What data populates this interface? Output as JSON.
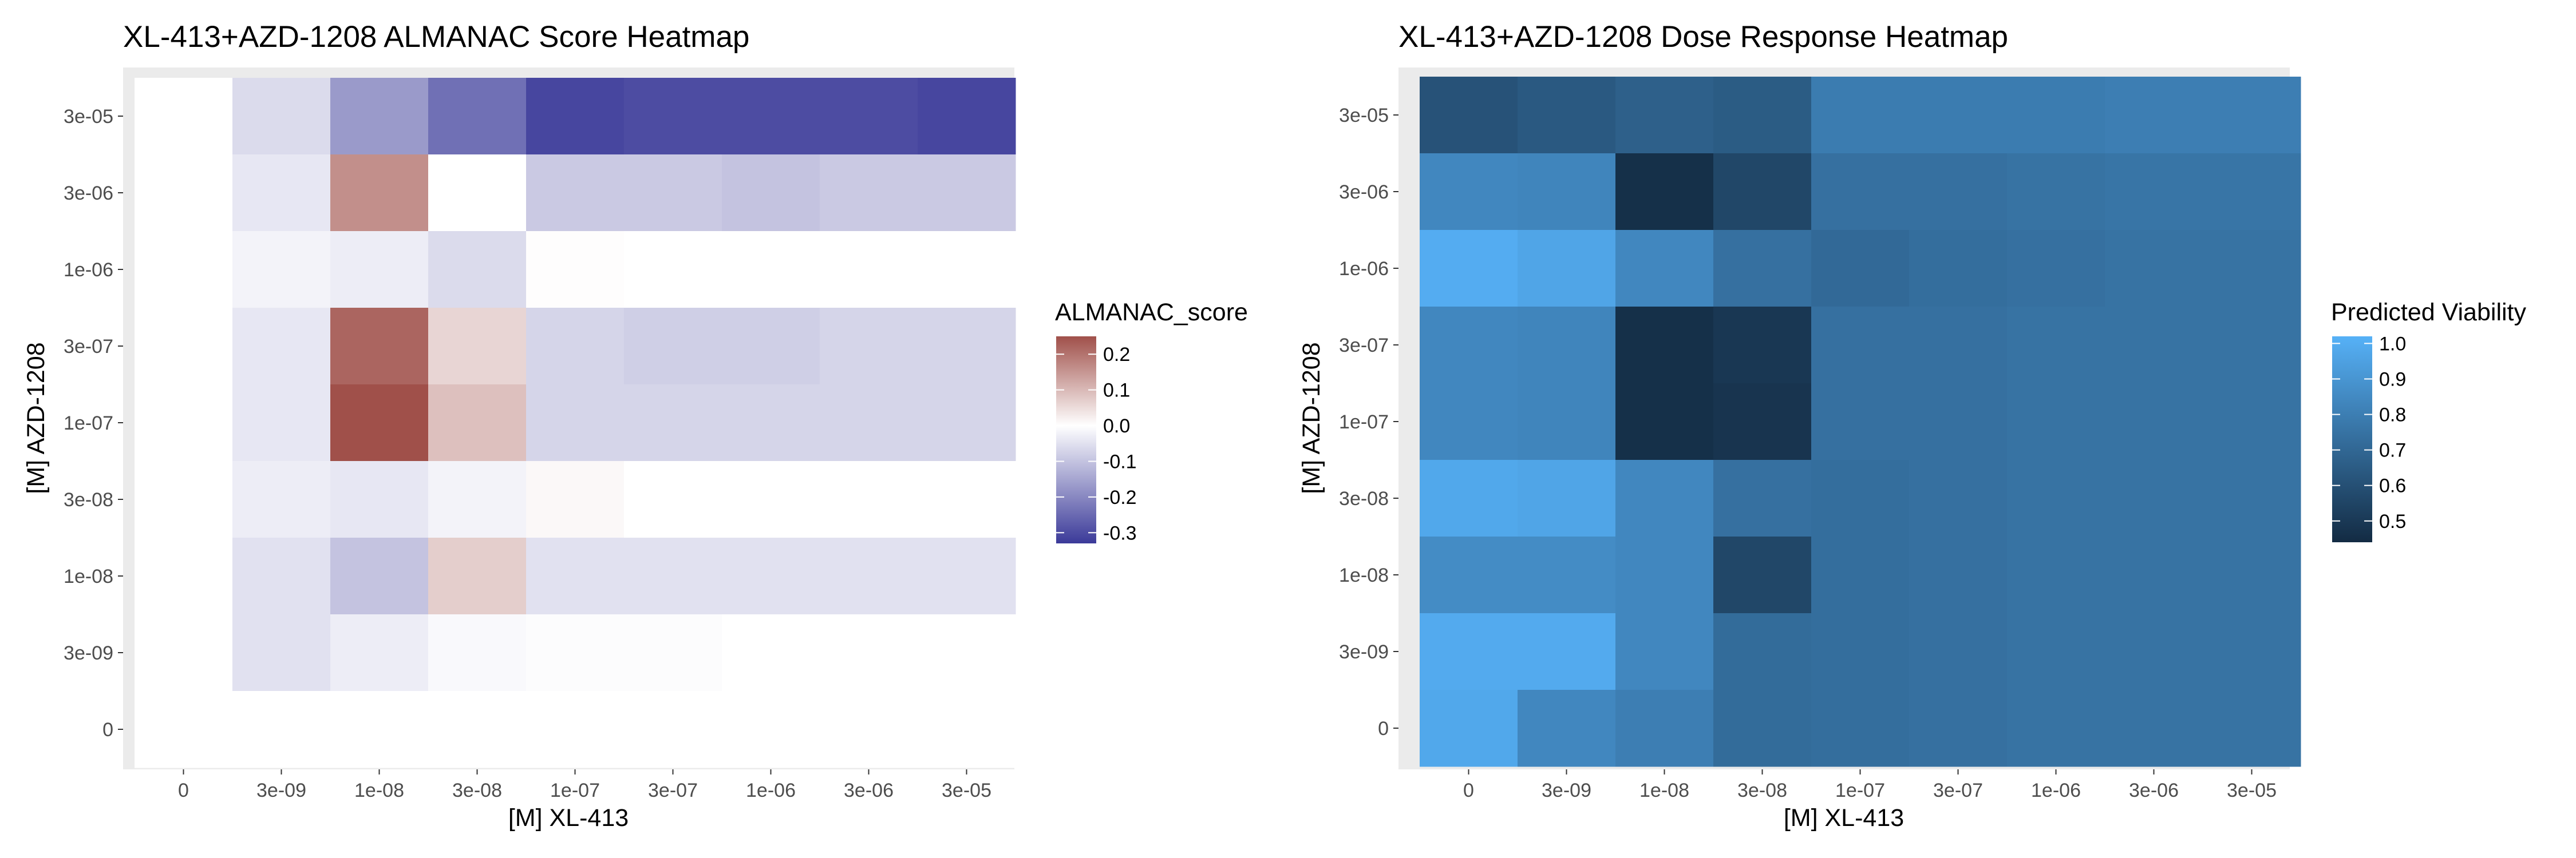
{
  "chart_data": [
    {
      "type": "heatmap",
      "title": "XL-413+AZD-1208 ALMANAC Score Heatmap",
      "xlabel": "[M] XL-413",
      "ylabel": "[M] AZD-1208",
      "x": [
        "0",
        "3e-09",
        "1e-08",
        "3e-08",
        "1e-07",
        "3e-07",
        "1e-06",
        "3e-06",
        "3e-05"
      ],
      "y": [
        "0",
        "3e-09",
        "1e-08",
        "3e-08",
        "1e-07",
        "3e-07",
        "1e-06",
        "3e-06",
        "3e-05"
      ],
      "values_by_row_top_to_bottom": [
        [
          0,
          -0.06,
          -0.17,
          -0.24,
          -0.31,
          -0.3,
          -0.3,
          -0.3,
          -0.31
        ],
        [
          0,
          -0.04,
          0.16,
          0,
          -0.09,
          -0.09,
          -0.1,
          -0.09,
          -0.09
        ],
        [
          0,
          -0.02,
          -0.03,
          -0.06,
          0.003,
          0,
          0,
          0,
          0
        ],
        [
          0,
          -0.04,
          0.22,
          0.06,
          -0.07,
          -0.08,
          -0.08,
          -0.07,
          -0.07
        ],
        [
          0,
          -0.04,
          0.25,
          0.09,
          -0.07,
          -0.07,
          -0.07,
          -0.07,
          -0.07
        ],
        [
          0,
          -0.03,
          -0.04,
          -0.02,
          0.01,
          0,
          0,
          0,
          0
        ],
        [
          0,
          -0.05,
          -0.1,
          0.07,
          -0.05,
          -0.05,
          -0.05,
          -0.05,
          -0.05
        ],
        [
          0,
          -0.05,
          -0.03,
          -0.01,
          -0.005,
          -0.005,
          0,
          0,
          0
        ],
        [
          0,
          0,
          0,
          0,
          0,
          0,
          0,
          0,
          0
        ]
      ],
      "value_range": [
        -0.33,
        0.25
      ],
      "legend": {
        "title": "ALMANAC_score",
        "ticks": [
          0.2,
          0.1,
          0.0,
          -0.1,
          -0.2,
          -0.3
        ],
        "tick_labels": [
          "0.2",
          "0.1",
          "0.0",
          "-0.1",
          "-0.2",
          "-0.3"
        ],
        "placement": "right"
      },
      "colors": {
        "low": "#3b3a99",
        "mid": "#ffffff",
        "high": "#a0504a"
      },
      "grid": false
    },
    {
      "type": "heatmap",
      "title": "XL-413+AZD-1208 Dose Response Heatmap",
      "xlabel": "[M] XL-413",
      "ylabel": "[M] AZD-1208",
      "x": [
        "0",
        "3e-09",
        "1e-08",
        "3e-08",
        "1e-07",
        "3e-07",
        "1e-06",
        "3e-06",
        "3e-05"
      ],
      "y": [
        "0",
        "3e-09",
        "1e-08",
        "3e-08",
        "1e-07",
        "3e-07",
        "1e-06",
        "3e-06",
        "3e-05"
      ],
      "values_by_row_top_to_bottom": [
        [
          0.61,
          0.64,
          0.67,
          0.65,
          0.79,
          0.79,
          0.79,
          0.8,
          0.8
        ],
        [
          0.84,
          0.83,
          0.46,
          0.56,
          0.74,
          0.74,
          0.75,
          0.76,
          0.76
        ],
        [
          1.0,
          0.97,
          0.84,
          0.74,
          0.71,
          0.73,
          0.74,
          0.75,
          0.75
        ],
        [
          0.84,
          0.83,
          0.46,
          0.49,
          0.74,
          0.74,
          0.75,
          0.75,
          0.75
        ],
        [
          0.84,
          0.83,
          0.46,
          0.48,
          0.74,
          0.74,
          0.75,
          0.75,
          0.75
        ],
        [
          0.98,
          0.97,
          0.84,
          0.74,
          0.73,
          0.74,
          0.75,
          0.75,
          0.75
        ],
        [
          0.86,
          0.86,
          0.84,
          0.56,
          0.73,
          0.74,
          0.75,
          0.75,
          0.75
        ],
        [
          0.99,
          0.99,
          0.84,
          0.72,
          0.73,
          0.74,
          0.75,
          0.75,
          0.75
        ],
        [
          0.98,
          0.84,
          0.8,
          0.72,
          0.73,
          0.74,
          0.75,
          0.75,
          0.75
        ]
      ],
      "value_range": [
        0.44,
        1.02
      ],
      "legend": {
        "title": "Predicted Viability",
        "ticks": [
          1.0,
          0.9,
          0.8,
          0.7,
          0.6,
          0.5
        ],
        "tick_labels": [
          "1.0",
          "0.9",
          "0.8",
          "0.7",
          "0.6",
          "0.5"
        ],
        "placement": "right"
      },
      "colors": {
        "low": "#132b43",
        "high": "#56b1f7"
      },
      "grid": false
    }
  ]
}
